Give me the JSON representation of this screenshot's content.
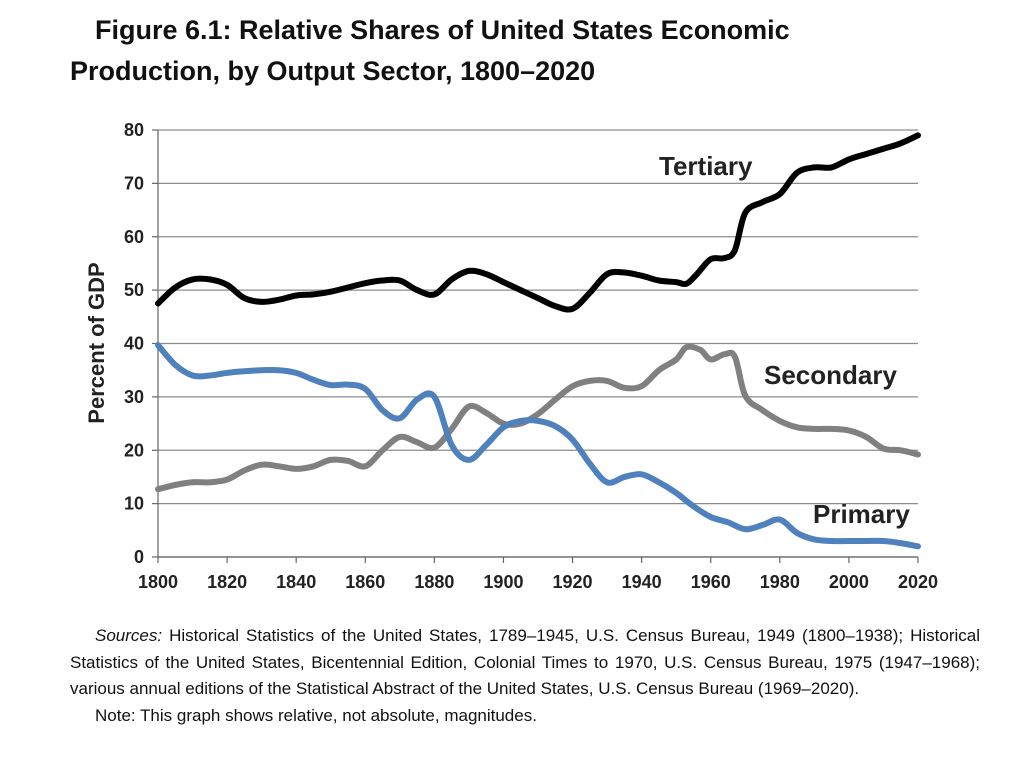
{
  "title": "Figure 6.1: Relative Shares of United States Economic\nProduction, by Output Sector, 1800–2020",
  "chart_data": {
    "type": "line",
    "title": "",
    "xlabel": "",
    "ylabel": "Percent of GDP",
    "xlim": [
      1800,
      2020
    ],
    "ylim": [
      0,
      80
    ],
    "grid": "horizontal",
    "x_ticks": [
      "1800",
      "1820",
      "1840",
      "1860",
      "1880",
      "1900",
      "1920",
      "1940",
      "1960",
      "1980",
      "2000",
      "2020"
    ],
    "y_ticks": [
      "0",
      "10",
      "20",
      "30",
      "40",
      "50",
      "60",
      "70",
      "80"
    ],
    "series": [
      {
        "name": "Tertiary",
        "color": "#000000",
        "points": [
          [
            1800,
            47.5
          ],
          [
            1805,
            50.5
          ],
          [
            1810,
            52
          ],
          [
            1815,
            52
          ],
          [
            1820,
            51
          ],
          [
            1825,
            48.5
          ],
          [
            1830,
            47.8
          ],
          [
            1835,
            48.2
          ],
          [
            1840,
            49
          ],
          [
            1845,
            49.2
          ],
          [
            1850,
            49.7
          ],
          [
            1855,
            50.5
          ],
          [
            1860,
            51.3
          ],
          [
            1865,
            51.8
          ],
          [
            1870,
            51.8
          ],
          [
            1875,
            50
          ],
          [
            1880,
            49.2
          ],
          [
            1885,
            52
          ],
          [
            1890,
            53.6
          ],
          [
            1895,
            53
          ],
          [
            1900,
            51.5
          ],
          [
            1905,
            50
          ],
          [
            1910,
            48.5
          ],
          [
            1915,
            47
          ],
          [
            1920,
            46.5
          ],
          [
            1925,
            49.5
          ],
          [
            1930,
            53
          ],
          [
            1935,
            53.3
          ],
          [
            1940,
            52.7
          ],
          [
            1945,
            51.8
          ],
          [
            1950,
            51.5
          ],
          [
            1953,
            51.2
          ],
          [
            1956,
            53
          ],
          [
            1960,
            55.8
          ],
          [
            1964,
            56
          ],
          [
            1967,
            57.5
          ],
          [
            1970,
            64.5
          ],
          [
            1975,
            66.5
          ],
          [
            1980,
            68
          ],
          [
            1985,
            72
          ],
          [
            1990,
            73
          ],
          [
            1995,
            73
          ],
          [
            2000,
            74.5
          ],
          [
            2005,
            75.5
          ],
          [
            2010,
            76.5
          ],
          [
            2015,
            77.5
          ],
          [
            2020,
            79
          ]
        ]
      },
      {
        "name": "Secondary",
        "color": "#808080",
        "points": [
          [
            1800,
            12.7
          ],
          [
            1805,
            13.5
          ],
          [
            1810,
            14
          ],
          [
            1815,
            14
          ],
          [
            1820,
            14.5
          ],
          [
            1825,
            16.2
          ],
          [
            1830,
            17.3
          ],
          [
            1835,
            17
          ],
          [
            1840,
            16.5
          ],
          [
            1845,
            17
          ],
          [
            1850,
            18.2
          ],
          [
            1855,
            18
          ],
          [
            1860,
            17
          ],
          [
            1865,
            20
          ],
          [
            1870,
            22.5
          ],
          [
            1875,
            21.5
          ],
          [
            1880,
            20.5
          ],
          [
            1885,
            24
          ],
          [
            1890,
            28.2
          ],
          [
            1895,
            27
          ],
          [
            1900,
            25
          ],
          [
            1905,
            25
          ],
          [
            1910,
            26.8
          ],
          [
            1915,
            29.5
          ],
          [
            1920,
            32
          ],
          [
            1925,
            33
          ],
          [
            1930,
            33
          ],
          [
            1935,
            31.7
          ],
          [
            1940,
            32
          ],
          [
            1945,
            35
          ],
          [
            1950,
            37
          ],
          [
            1953,
            39.3
          ],
          [
            1957,
            38.8
          ],
          [
            1960,
            37
          ],
          [
            1964,
            38
          ],
          [
            1967,
            37.5
          ],
          [
            1970,
            30.2
          ],
          [
            1975,
            27.5
          ],
          [
            1980,
            25.5
          ],
          [
            1985,
            24.3
          ],
          [
            1990,
            24
          ],
          [
            1995,
            24
          ],
          [
            2000,
            23.7
          ],
          [
            2005,
            22.5
          ],
          [
            2010,
            20.3
          ],
          [
            2015,
            20
          ],
          [
            2020,
            19.2
          ]
        ]
      },
      {
        "name": "Primary",
        "color": "#4f81bd",
        "points": [
          [
            1800,
            39.7
          ],
          [
            1805,
            36
          ],
          [
            1810,
            34
          ],
          [
            1815,
            34
          ],
          [
            1820,
            34.5
          ],
          [
            1825,
            34.8
          ],
          [
            1830,
            35
          ],
          [
            1835,
            35
          ],
          [
            1840,
            34.5
          ],
          [
            1845,
            33.2
          ],
          [
            1850,
            32.2
          ],
          [
            1855,
            32.3
          ],
          [
            1860,
            31.5
          ],
          [
            1865,
            27.5
          ],
          [
            1870,
            26
          ],
          [
            1875,
            29.5
          ],
          [
            1880,
            30
          ],
          [
            1885,
            21
          ],
          [
            1890,
            18.2
          ],
          [
            1895,
            21
          ],
          [
            1900,
            24.3
          ],
          [
            1905,
            25.5
          ],
          [
            1910,
            25.5
          ],
          [
            1915,
            24.5
          ],
          [
            1920,
            22
          ],
          [
            1925,
            17.5
          ],
          [
            1930,
            14
          ],
          [
            1935,
            15
          ],
          [
            1940,
            15.5
          ],
          [
            1945,
            14
          ],
          [
            1950,
            12
          ],
          [
            1955,
            9.5
          ],
          [
            1960,
            7.5
          ],
          [
            1965,
            6.5
          ],
          [
            1970,
            5.2
          ],
          [
            1975,
            6
          ],
          [
            1980,
            7
          ],
          [
            1985,
            4.5
          ],
          [
            1990,
            3.3
          ],
          [
            1995,
            3
          ],
          [
            2000,
            3
          ],
          [
            2005,
            3
          ],
          [
            2010,
            3
          ],
          [
            2015,
            2.6
          ],
          [
            2020,
            2
          ]
        ]
      }
    ]
  },
  "sources": {
    "label": "Sources:",
    "text": " Historical Statistics of the United States, 1789–1945, U.S. Census Bureau, 1949 (1800–1938); Historical Statistics of the United States, Bicentennial Edition, Colonial Times to 1970, U.S. Census Bureau, 1975 (1947–1968); various annual editions of the Statistical Abstract of the United States, U.S. Census Bureau (1969–2020).",
    "note": "Note: This graph shows relative, not absolute, magnitudes."
  }
}
